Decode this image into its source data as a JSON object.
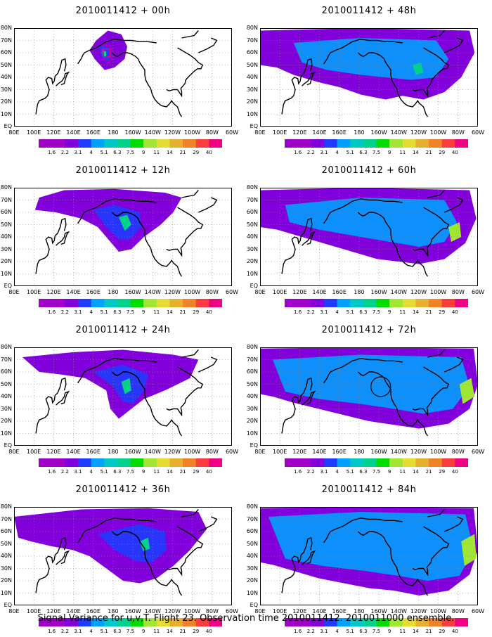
{
  "panels": [
    {
      "id": "p00",
      "title": "2010011412 + 00h",
      "level": 0
    },
    {
      "id": "p48",
      "title": "2010011412 + 48h",
      "level": 4
    },
    {
      "id": "p12",
      "title": "2010011412 + 12h",
      "level": 1
    },
    {
      "id": "p60",
      "title": "2010011412 + 60h",
      "level": 5
    },
    {
      "id": "p24",
      "title": "2010011412 + 24h",
      "level": 2
    },
    {
      "id": "p72",
      "title": "2010011412 + 72h",
      "level": 6
    },
    {
      "id": "p36",
      "title": "2010011412 + 36h",
      "level": 3
    },
    {
      "id": "p84",
      "title": "2010011412 + 84h",
      "level": 7
    }
  ],
  "axes": {
    "lat_labels": [
      "80N",
      "70N",
      "60N",
      "50N",
      "40N",
      "30N",
      "20N",
      "10N",
      "EQ"
    ],
    "lon_labels": [
      "80E",
      "100E",
      "120E",
      "140E",
      "160E",
      "180",
      "160W",
      "140W",
      "120W",
      "100W",
      "80W",
      "60W"
    ]
  },
  "colorbar": {
    "labels": [
      "1.6",
      "2.2",
      "3.1",
      "4",
      "5.1",
      "6.3",
      "7.5",
      "9",
      "11",
      "14",
      "21",
      "29",
      "40"
    ],
    "colors": [
      "#a000c8",
      "#8200dc",
      "#1e3cff",
      "#00a0ff",
      "#00c8c8",
      "#00d28c",
      "#00dc00",
      "#a0e632",
      "#e6dc32",
      "#e6af2d",
      "#f08228",
      "#fa3c3c",
      "#f00082"
    ]
  },
  "caption": "Signal Variance for u,v,T. Flight 23. Observation time 2010011412. 2010011000 ensemble."
}
